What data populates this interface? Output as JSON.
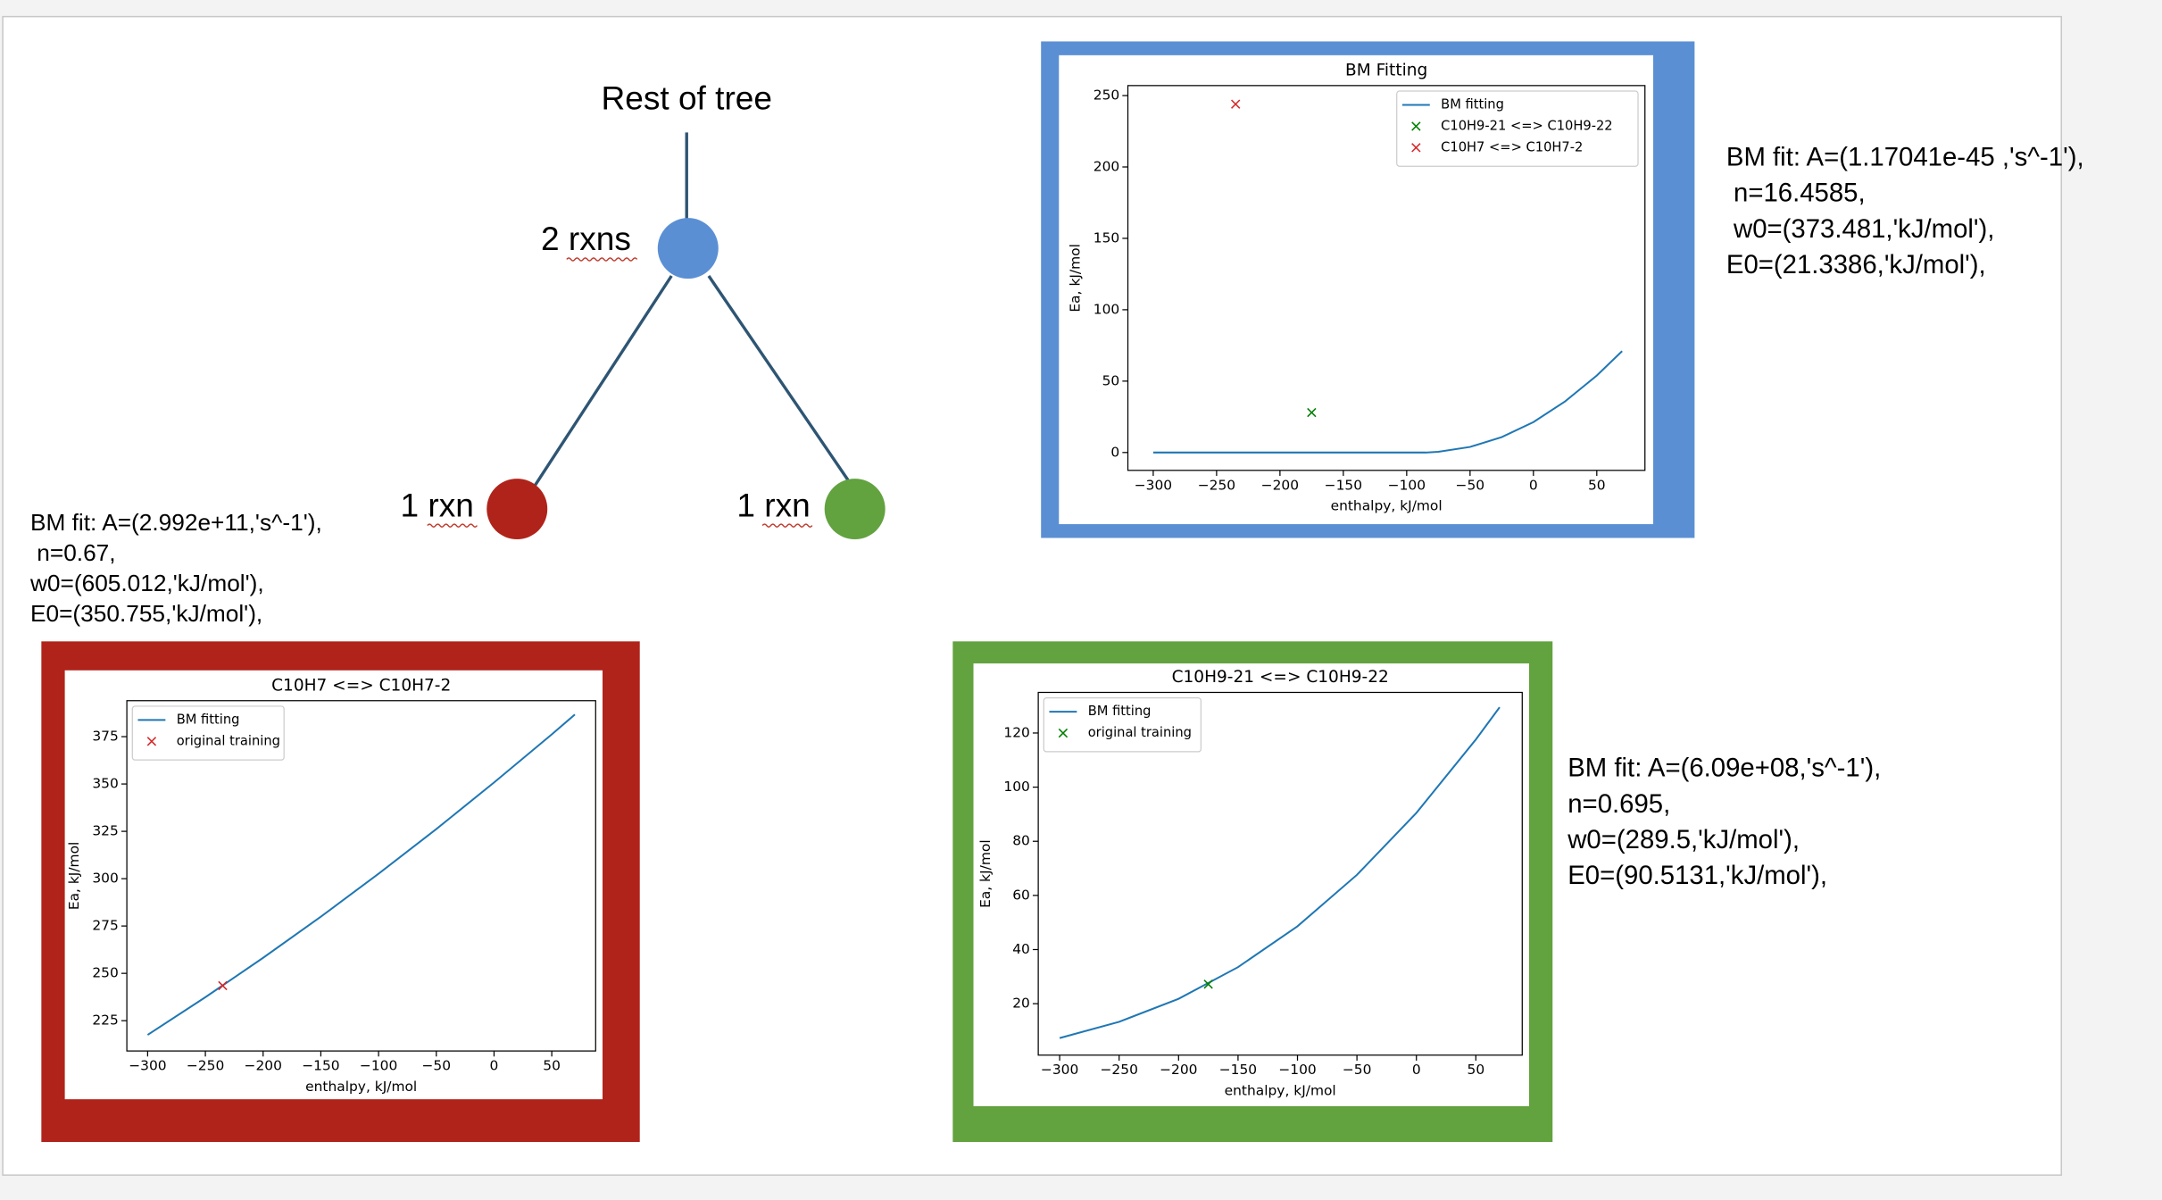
{
  "tree": {
    "root": "Rest of tree",
    "parent": "2 rxns",
    "left": "1 rxn",
    "right": "1 rxn"
  },
  "notes": [
    [
      "BM fit: A=(1.17041e-45 ,'s^-1'),",
      " n=16.4585,",
      " w0=(373.481,'kJ/mol'),",
      "E0=(21.3386,'kJ/mol'),"
    ],
    [
      "BM fit: A=(2.992e+11,'s^-1'),",
      " n=0.67,",
      "w0=(605.012,'kJ/mol'),",
      "E0=(350.755,'kJ/mol'),"
    ],
    [
      "BM fit: A=(6.09e+08,'s^-1'),",
      "n=0.695,",
      "w0=(289.5,'kJ/mol'),",
      "E0=(90.5131,'kJ/mol'),"
    ]
  ],
  "chart_data": [
    {
      "type": "line",
      "title": "BM Fitting",
      "xlabel": "enthalpy, kJ/mol",
      "ylabel": "Ea, kJ/mol",
      "xlim": [
        -320,
        88
      ],
      "ylim": [
        -12.5,
        257
      ],
      "xticks": [
        {
          "value": -300,
          "label": "−300"
        },
        {
          "value": -250,
          "label": "−250"
        },
        {
          "value": -200,
          "label": "−200"
        },
        {
          "value": -150,
          "label": "−150"
        },
        {
          "value": -100,
          "label": "−100"
        },
        {
          "value": -50,
          "label": "−50"
        },
        0,
        50
      ],
      "yticks": [
        0,
        50,
        100,
        150,
        200,
        250
      ],
      "legend": "upper right",
      "series": [
        {
          "name": "BM fitting",
          "type": "line",
          "color": "#1f77b4",
          "x": [
            -300,
            -85,
            -75,
            -50,
            -25,
            0,
            25,
            50,
            70
          ],
          "values": [
            0,
            0,
            0.5,
            3.9,
            10.8,
            21.3,
            35.8,
            53.9,
            71.0
          ]
        },
        {
          "name": "C10H9-21 <=> C10H9-22",
          "type": "scatter",
          "color": "#008000",
          "x": [
            -175
          ],
          "values": [
            28
          ]
        },
        {
          "name": "C10H7 <=> C10H7-2",
          "type": "scatter",
          "color": "#d62728",
          "x": [
            -235
          ],
          "values": [
            244
          ]
        }
      ]
    },
    {
      "type": "line",
      "title": "C10H7 <=> C10H7-2",
      "xlabel": "enthalpy, kJ/mol",
      "ylabel": "Ea, kJ/mol",
      "xlim": [
        -318,
        88
      ],
      "ylim": [
        209,
        394
      ],
      "xticks": [
        {
          "value": -300,
          "label": "−300"
        },
        {
          "value": -250,
          "label": "−250"
        },
        {
          "value": -200,
          "label": "−200"
        },
        {
          "value": -150,
          "label": "−150"
        },
        {
          "value": -100,
          "label": "−100"
        },
        {
          "value": -50,
          "label": "−50"
        },
        0,
        50
      ],
      "yticks": [
        225,
        250,
        275,
        300,
        325,
        350,
        375
      ],
      "legend": "upper left",
      "series": [
        {
          "name": "BM fitting",
          "type": "line",
          "color": "#1f77b4",
          "x": [
            -300,
            -250,
            -200,
            -150,
            -100,
            -50,
            0,
            50,
            70
          ],
          "values": [
            217.5,
            237.4,
            258.2,
            279.9,
            302.6,
            326.2,
            350.8,
            376.2,
            386.7
          ]
        },
        {
          "name": "original training",
          "type": "scatter",
          "color": "#d62728",
          "x": [
            -235
          ],
          "values": [
            243.5
          ]
        }
      ]
    },
    {
      "type": "line",
      "title": "C10H9-21 <=> C10H9-22",
      "xlabel": "enthalpy, kJ/mol",
      "ylabel": "Ea, kJ/mol",
      "xlim": [
        -318,
        89
      ],
      "ylim": [
        1,
        135
      ],
      "xticks": [
        {
          "value": -300,
          "label": "−300"
        },
        {
          "value": -250,
          "label": "−250"
        },
        {
          "value": -200,
          "label": "−200"
        },
        {
          "value": -150,
          "label": "−150"
        },
        {
          "value": -100,
          "label": "−100"
        },
        {
          "value": -50,
          "label": "−50"
        },
        0,
        50
      ],
      "yticks": [
        20,
        40,
        60,
        80,
        100,
        120
      ],
      "legend": "upper left",
      "series": [
        {
          "name": "BM fitting",
          "type": "line",
          "color": "#1f77b4",
          "x": [
            -300,
            -250,
            -200,
            -150,
            -100,
            -50,
            0,
            50,
            70
          ],
          "values": [
            7.3,
            13.3,
            21.8,
            33.5,
            48.6,
            67.6,
            90.5,
            117.6,
            129.5
          ]
        },
        {
          "name": "original training",
          "type": "scatter",
          "color": "#008000",
          "x": [
            -175
          ],
          "values": [
            27.2
          ]
        }
      ]
    }
  ]
}
